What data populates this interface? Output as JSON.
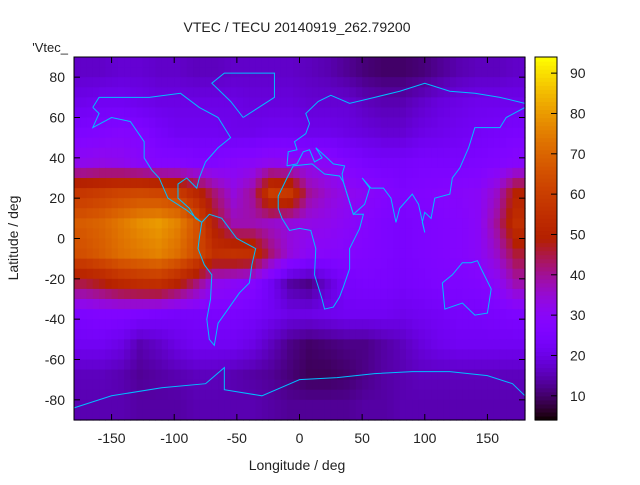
{
  "chart_data": {
    "type": "heatmap",
    "title": "VTEC / TECU 20140919_262.79200",
    "xlabel": "Longitude / deg",
    "ylabel": "Latitude / deg",
    "key_label": "'Vtec_",
    "xlim": [
      -180,
      180
    ],
    "ylim": [
      -90,
      90
    ],
    "xticks": [
      -150,
      -100,
      -50,
      0,
      50,
      100,
      150
    ],
    "yticks": [
      -80,
      -60,
      -40,
      -20,
      0,
      20,
      40,
      60,
      80
    ],
    "cbrange": [
      4,
      94
    ],
    "cbticks": [
      10,
      20,
      30,
      40,
      50,
      60,
      70,
      80,
      90
    ],
    "colormap": "black-purple-red-yellow",
    "coastline_color": "#00bfff",
    "grid_lon_centers_step": 15,
    "grid_lat_centers": [
      82.5,
      67.5,
      52.5,
      37.5,
      22.5,
      7.5,
      -7.5,
      -22.5,
      -37.5,
      -52.5,
      -67.5,
      -82.5
    ],
    "grid_lon_centers": [
      -172.5,
      -157.5,
      -142.5,
      -127.5,
      -112.5,
      -97.5,
      -82.5,
      -67.5,
      -52.5,
      -37.5,
      -22.5,
      -7.5,
      7.5,
      22.5,
      37.5,
      52.5,
      67.5,
      82.5,
      97.5,
      112.5,
      127.5,
      142.5,
      157.5,
      172.5
    ],
    "values": [
      [
        17,
        17,
        18,
        18,
        17,
        17,
        16,
        16,
        17,
        17,
        17,
        17,
        16,
        15,
        13,
        11,
        10,
        10,
        11,
        13,
        15,
        16,
        16,
        17
      ],
      [
        21,
        22,
        22,
        21,
        20,
        20,
        20,
        20,
        20,
        19,
        19,
        19,
        18,
        18,
        18,
        16,
        15,
        15,
        17,
        19,
        20,
        21,
        21,
        21
      ],
      [
        26,
        27,
        28,
        27,
        24,
        22,
        22,
        22,
        21,
        21,
        22,
        22,
        21,
        21,
        20,
        19,
        18,
        18,
        20,
        21,
        22,
        23,
        24,
        25
      ],
      [
        32,
        33,
        32,
        30,
        28,
        28,
        27,
        27,
        29,
        30,
        32,
        31,
        31,
        30,
        27,
        25,
        24,
        24,
        25,
        25,
        25,
        26,
        27,
        29
      ],
      [
        58,
        60,
        62,
        63,
        62,
        60,
        52,
        42,
        34,
        40,
        60,
        58,
        40,
        35,
        32,
        30,
        28,
        26,
        27,
        28,
        29,
        30,
        36,
        50
      ],
      [
        68,
        70,
        74,
        78,
        80,
        76,
        66,
        48,
        38,
        38,
        36,
        34,
        33,
        32,
        30,
        28,
        26,
        25,
        26,
        27,
        28,
        30,
        40,
        55
      ],
      [
        65,
        68,
        72,
        74,
        76,
        72,
        64,
        55,
        56,
        55,
        42,
        34,
        30,
        29,
        28,
        27,
        26,
        25,
        26,
        27,
        28,
        30,
        36,
        46
      ],
      [
        45,
        48,
        52,
        54,
        55,
        50,
        42,
        32,
        30,
        28,
        22,
        14,
        12,
        18,
        24,
        25,
        25,
        24,
        25,
        26,
        26,
        27,
        30,
        38
      ],
      [
        26,
        27,
        27,
        26,
        25,
        24,
        24,
        25,
        25,
        24,
        22,
        20,
        20,
        21,
        22,
        22,
        22,
        21,
        22,
        23,
        24,
        24,
        25,
        26
      ],
      [
        22,
        22,
        20,
        15,
        17,
        20,
        22,
        22,
        22,
        20,
        16,
        12,
        10,
        11,
        12,
        12,
        14,
        16,
        19,
        21,
        22,
        22,
        22,
        22
      ],
      [
        16,
        16,
        15,
        13,
        14,
        15,
        16,
        16,
        15,
        14,
        13,
        11,
        9,
        9,
        10,
        12,
        14,
        15,
        16,
        16,
        16,
        16,
        16,
        16
      ],
      [
        15,
        15,
        15,
        14,
        14,
        14,
        15,
        15,
        15,
        15,
        14,
        13,
        13,
        13,
        13,
        14,
        14,
        15,
        15,
        15,
        15,
        15,
        15,
        15
      ]
    ],
    "coastlines": [
      [
        [
          -165,
          65
        ],
        [
          -160,
          70
        ],
        [
          -140,
          70
        ],
        [
          -120,
          70
        ],
        [
          -95,
          72
        ],
        [
          -80,
          65
        ],
        [
          -65,
          60
        ],
        [
          -55,
          50
        ],
        [
          -65,
          45
        ],
        [
          -75,
          38
        ],
        [
          -80,
          30
        ],
        [
          -82,
          25
        ],
        [
          -90,
          30
        ],
        [
          -97,
          27
        ],
        [
          -97,
          20
        ],
        [
          -88,
          15
        ],
        [
          -83,
          10
        ],
        [
          -78,
          8
        ],
        [
          -90,
          14
        ],
        [
          -105,
          20
        ],
        [
          -112,
          30
        ],
        [
          -118,
          34
        ],
        [
          -124,
          40
        ],
        [
          -124,
          48
        ],
        [
          -135,
          58
        ],
        [
          -150,
          60
        ],
        [
          -165,
          55
        ],
        [
          -160,
          62
        ],
        [
          -165,
          65
        ]
      ],
      [
        [
          -78,
          8
        ],
        [
          -72,
          12
        ],
        [
          -62,
          10
        ],
        [
          -50,
          0
        ],
        [
          -35,
          -5
        ],
        [
          -38,
          -13
        ],
        [
          -40,
          -22
        ],
        [
          -48,
          -27
        ],
        [
          -57,
          -35
        ],
        [
          -65,
          -42
        ],
        [
          -68,
          -53
        ],
        [
          -72,
          -50
        ],
        [
          -74,
          -40
        ],
        [
          -71,
          -30
        ],
        [
          -70,
          -18
        ],
        [
          -76,
          -13
        ],
        [
          -81,
          -5
        ],
        [
          -80,
          0
        ],
        [
          -78,
          8
        ]
      ],
      [
        [
          -17,
          15
        ],
        [
          -17,
          21
        ],
        [
          -10,
          30
        ],
        [
          -5,
          36
        ],
        [
          10,
          37
        ],
        [
          20,
          32
        ],
        [
          32,
          31
        ],
        [
          35,
          28
        ],
        [
          43,
          12
        ],
        [
          51,
          12
        ],
        [
          48,
          5
        ],
        [
          40,
          -5
        ],
        [
          40,
          -15
        ],
        [
          35,
          -24
        ],
        [
          32,
          -29
        ],
        [
          27,
          -34
        ],
        [
          20,
          -35
        ],
        [
          18,
          -30
        ],
        [
          12,
          -18
        ],
        [
          13,
          -5
        ],
        [
          9,
          4
        ],
        [
          0,
          5
        ],
        [
          -8,
          4
        ],
        [
          -14,
          10
        ],
        [
          -17,
          15
        ]
      ],
      [
        [
          -10,
          36
        ],
        [
          -9,
          43
        ],
        [
          -2,
          44
        ],
        [
          -4,
          48
        ],
        [
          5,
          52
        ],
        [
          8,
          57
        ],
        [
          5,
          62
        ],
        [
          15,
          68
        ],
        [
          25,
          71
        ],
        [
          40,
          67
        ],
        [
          60,
          70
        ],
        [
          80,
          73
        ],
        [
          100,
          77
        ],
        [
          120,
          73
        ],
        [
          140,
          72
        ],
        [
          160,
          70
        ],
        [
          180,
          67
        ],
        [
          180,
          65
        ],
        [
          165,
          60
        ],
        [
          160,
          55
        ],
        [
          140,
          55
        ],
        [
          135,
          45
        ],
        [
          128,
          35
        ],
        [
          122,
          30
        ],
        [
          120,
          22
        ],
        [
          108,
          20
        ],
        [
          105,
          10
        ],
        [
          100,
          13
        ],
        [
          98,
          8
        ],
        [
          100,
          3
        ],
        [
          95,
          17
        ],
        [
          90,
          22
        ],
        [
          80,
          15
        ],
        [
          77,
          8
        ],
        [
          73,
          20
        ],
        [
          67,
          25
        ],
        [
          57,
          25
        ],
        [
          50,
          30
        ],
        [
          56,
          25
        ],
        [
          52,
          17
        ],
        [
          43,
          12
        ],
        [
          35,
          28
        ],
        [
          34,
          32
        ],
        [
          36,
          36
        ],
        [
          27,
          37
        ],
        [
          22,
          40
        ],
        [
          13,
          45
        ],
        [
          18,
          40
        ],
        [
          12,
          38
        ],
        [
          8,
          44
        ],
        [
          3,
          43
        ],
        [
          -2,
          37
        ],
        [
          -10,
          36
        ]
      ],
      [
        [
          114,
          -22
        ],
        [
          122,
          -18
        ],
        [
          130,
          -12
        ],
        [
          137,
          -12
        ],
        [
          142,
          -11
        ],
        [
          145,
          -15
        ],
        [
          153,
          -25
        ],
        [
          150,
          -37
        ],
        [
          140,
          -38
        ],
        [
          130,
          -32
        ],
        [
          116,
          -35
        ],
        [
          114,
          -22
        ]
      ],
      [
        [
          -180,
          -84
        ],
        [
          -150,
          -78
        ],
        [
          -110,
          -74
        ],
        [
          -75,
          -72
        ],
        [
          -60,
          -64
        ],
        [
          -60,
          -75
        ],
        [
          -30,
          -78
        ],
        [
          0,
          -70
        ],
        [
          30,
          -69
        ],
        [
          60,
          -67
        ],
        [
          90,
          -66
        ],
        [
          120,
          -66
        ],
        [
          150,
          -68
        ],
        [
          170,
          -72
        ],
        [
          180,
          -78
        ]
      ],
      [
        [
          -45,
          60
        ],
        [
          -20,
          70
        ],
        [
          -20,
          82
        ],
        [
          -60,
          82
        ],
        [
          -70,
          77
        ],
        [
          -55,
          68
        ],
        [
          -45,
          60
        ]
      ]
    ]
  }
}
